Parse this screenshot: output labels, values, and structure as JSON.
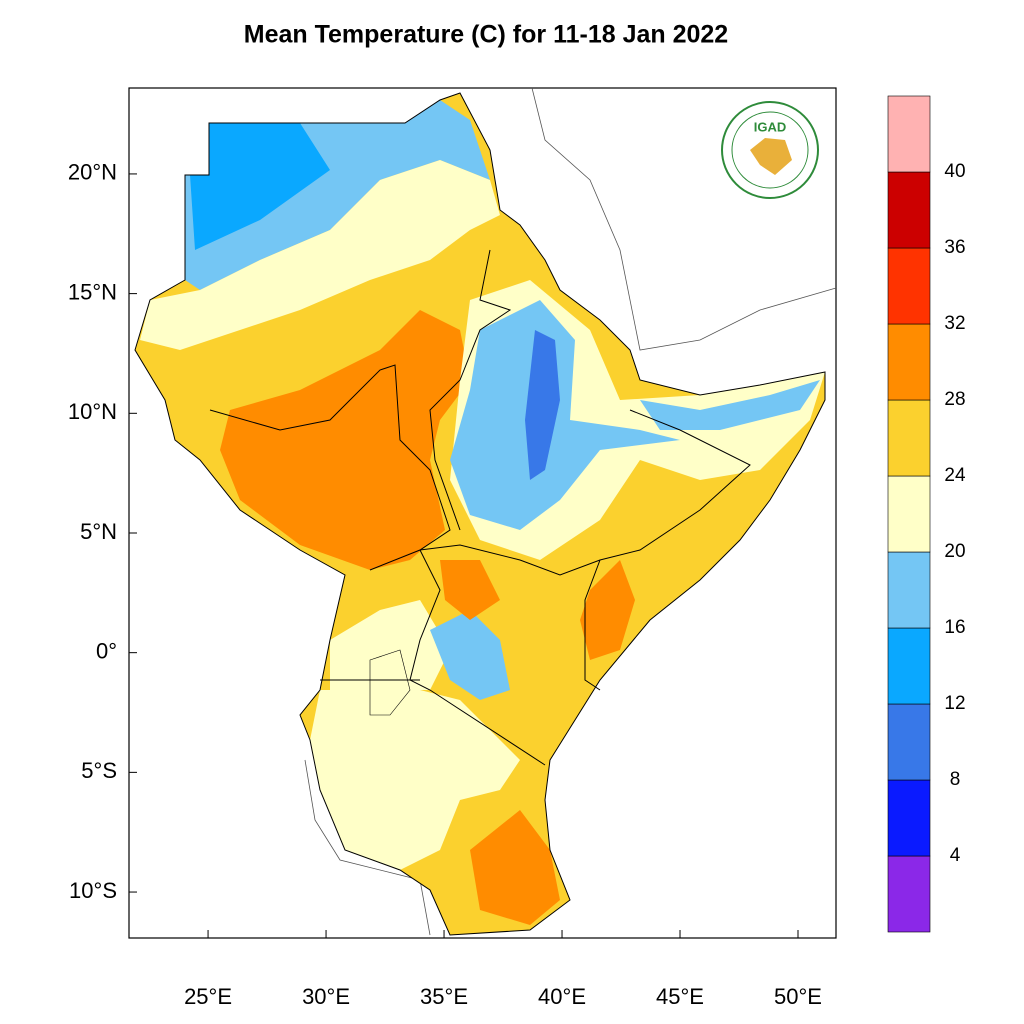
{
  "title": "Mean Temperature (C) for 11-18 Jan 2022",
  "map": {
    "xlim": [
      21.65,
      51.61
    ],
    "ylim": [
      -11.92,
      23.59
    ],
    "xticks": [
      {
        "value": 25,
        "label": "25°E"
      },
      {
        "value": 30,
        "label": "30°E"
      },
      {
        "value": 35,
        "label": "35°E"
      },
      {
        "value": 40,
        "label": "40°E"
      },
      {
        "value": 45,
        "label": "45°E"
      },
      {
        "value": 50,
        "label": "50°E"
      }
    ],
    "yticks": [
      {
        "value": 20,
        "label": "20°N"
      },
      {
        "value": 15,
        "label": "15°N"
      },
      {
        "value": 10,
        "label": "10°N"
      },
      {
        "value": 5,
        "label": "5°N"
      },
      {
        "value": 0,
        "label": "0°"
      },
      {
        "value": -5,
        "label": "5°S"
      },
      {
        "value": -10,
        "label": "10°S"
      }
    ]
  },
  "colorbar": {
    "levels": [
      4,
      8,
      12,
      16,
      20,
      24,
      28,
      32,
      36,
      40
    ],
    "colors": [
      "#8b28e8",
      "#0a1aff",
      "#3878e8",
      "#0aa8ff",
      "#74c6f4",
      "#ffffc8",
      "#fbd12e",
      "#ff8c00",
      "#ff3300",
      "#cc0000",
      "#ffb2b2"
    ]
  },
  "logo": {
    "label": "IGAD"
  }
}
